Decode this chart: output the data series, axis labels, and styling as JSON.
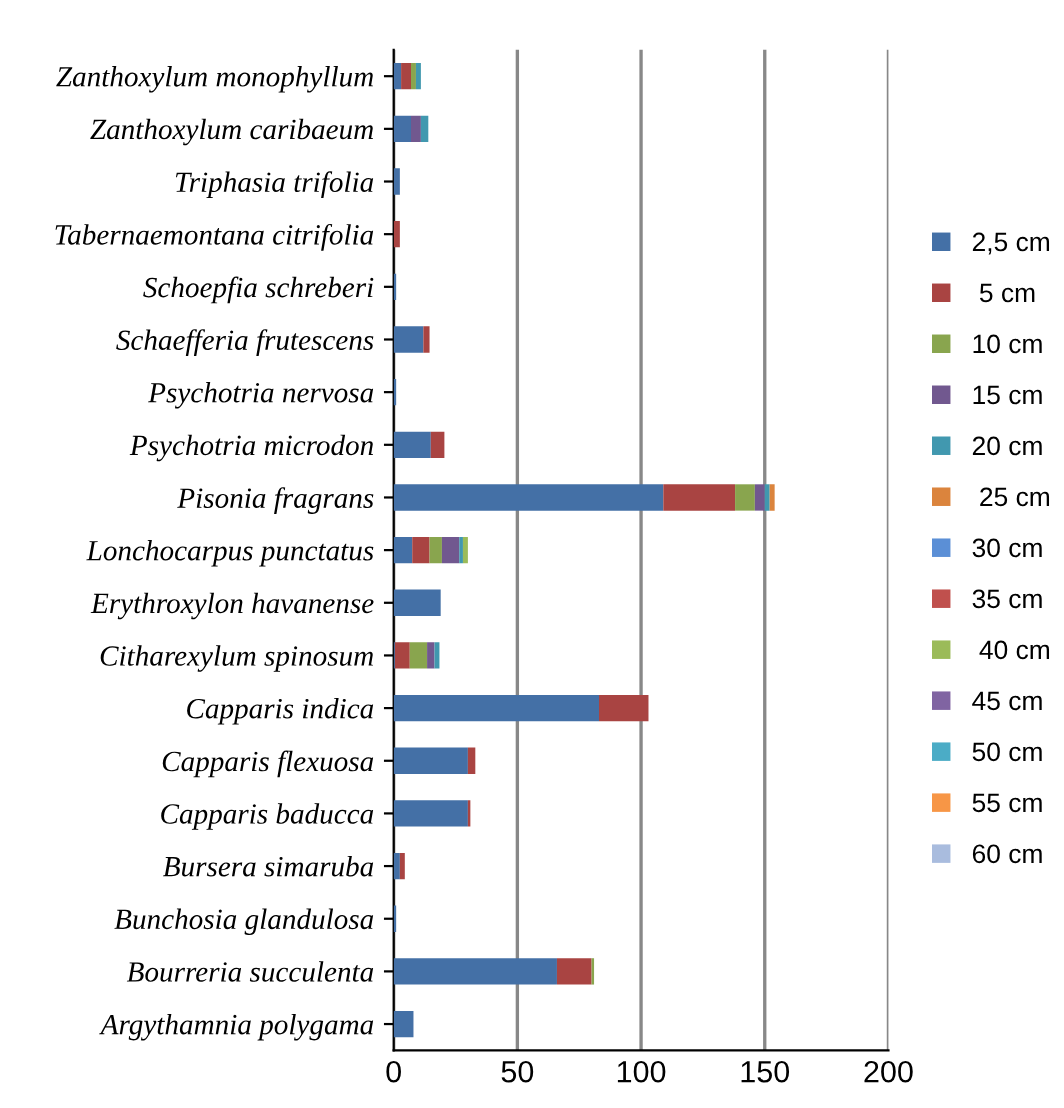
{
  "chart_data": {
    "type": "bar",
    "orientation": "horizontal",
    "stacked": true,
    "grid": "x",
    "legend": "right",
    "categories": [
      "Zanthoxylum monophyllum",
      "Zanthoxylum caribaeum",
      "Triphasia trifolia",
      "Tabernaemontana citrifolia",
      "Schoepfia schreberi",
      "Schaefferia frutescens",
      "Psychotria nervosa",
      "Psychotria microdon",
      "Pisonia fragrans",
      "Lonchocarpus punctatus",
      "Erythroxylon havanense",
      "Citharexylum spinosum",
      "Capparis indica",
      "Capparis flexuosa",
      "Capparis baducca",
      "Bursera simaruba",
      "Bunchosia glandulosa",
      "Bourreria succulenta",
      "Argythamnia polygama"
    ],
    "xlim": [
      0,
      200
    ],
    "xticks": [
      0,
      50,
      100,
      150,
      200
    ],
    "series": [
      {
        "name": "2,5 cm",
        "color": "#4470a6",
        "values": [
          3,
          7,
          2.5,
          0,
          1,
          12,
          1,
          15,
          109,
          7.5,
          19,
          0.5,
          83,
          30,
          30,
          2.5,
          1,
          66,
          8
        ]
      },
      {
        "name": " 5 cm",
        "color": "#a94442",
        "values": [
          4,
          0,
          0,
          2.5,
          0,
          2.5,
          0,
          5.5,
          29,
          7,
          0,
          6,
          20,
          3,
          1,
          2,
          0,
          14,
          0
        ]
      },
      {
        "name": "10 cm",
        "color": "#89a54e",
        "values": [
          2,
          0,
          0,
          0,
          0,
          0,
          0,
          0,
          8,
          5,
          0,
          7,
          0,
          0,
          0,
          0,
          0,
          1,
          0
        ]
      },
      {
        "name": "15 cm",
        "color": "#71588f",
        "values": [
          0,
          4,
          0,
          0,
          0,
          0,
          0,
          0,
          4,
          7,
          0,
          3,
          0,
          0,
          0,
          0,
          0,
          0,
          0
        ]
      },
      {
        "name": "20 cm",
        "color": "#4198af",
        "values": [
          2,
          3,
          0,
          0,
          0,
          0,
          0,
          0,
          2,
          1.5,
          0,
          2,
          0,
          0,
          0,
          0,
          0,
          0,
          0
        ]
      },
      {
        "name": " 25 cm",
        "color": "#db843d",
        "values": [
          0,
          0,
          0,
          0,
          0,
          0,
          0,
          0,
          2,
          0,
          0,
          0,
          0,
          0,
          0,
          0,
          0,
          0,
          0
        ]
      },
      {
        "name": "30 cm",
        "color": "#5b8fd6",
        "values": [
          0,
          0,
          0,
          0,
          0,
          0,
          0,
          0,
          0,
          0,
          0,
          0,
          0,
          0,
          0,
          0,
          0,
          0,
          0
        ]
      },
      {
        "name": "35 cm",
        "color": "#c0504d",
        "values": [
          0,
          0,
          0,
          0,
          0,
          0,
          0,
          0,
          0,
          0,
          0,
          0,
          0,
          0,
          0,
          0,
          0,
          0,
          0
        ]
      },
      {
        "name": " 40 cm",
        "color": "#9bbb59",
        "values": [
          0,
          0,
          0,
          0,
          0,
          0,
          0,
          0,
          0,
          2,
          0,
          0,
          0,
          0,
          0,
          0,
          0,
          0,
          0
        ]
      },
      {
        "name": "45 cm",
        "color": "#8064a2",
        "values": [
          0,
          0,
          0,
          0,
          0,
          0,
          0,
          0,
          0,
          0,
          0,
          0,
          0,
          0,
          0,
          0,
          0,
          0,
          0
        ]
      },
      {
        "name": "50 cm",
        "color": "#4bacc6",
        "values": [
          0,
          0,
          0,
          0,
          0,
          0,
          0,
          0,
          0,
          0,
          0,
          0,
          0,
          0,
          0,
          0,
          0,
          0,
          0
        ]
      },
      {
        "name": "55 cm",
        "color": "#f79646",
        "values": [
          0,
          0,
          0,
          0,
          0,
          0,
          0,
          0,
          0,
          0,
          0,
          0,
          0,
          0,
          0,
          0,
          0,
          0,
          0
        ]
      },
      {
        "name": "60 cm",
        "color": "#a9bcde",
        "values": [
          0,
          0,
          0,
          0,
          0,
          0,
          0,
          0,
          0,
          0,
          0,
          0,
          0,
          0,
          0,
          0,
          0,
          0,
          0
        ]
      }
    ]
  }
}
